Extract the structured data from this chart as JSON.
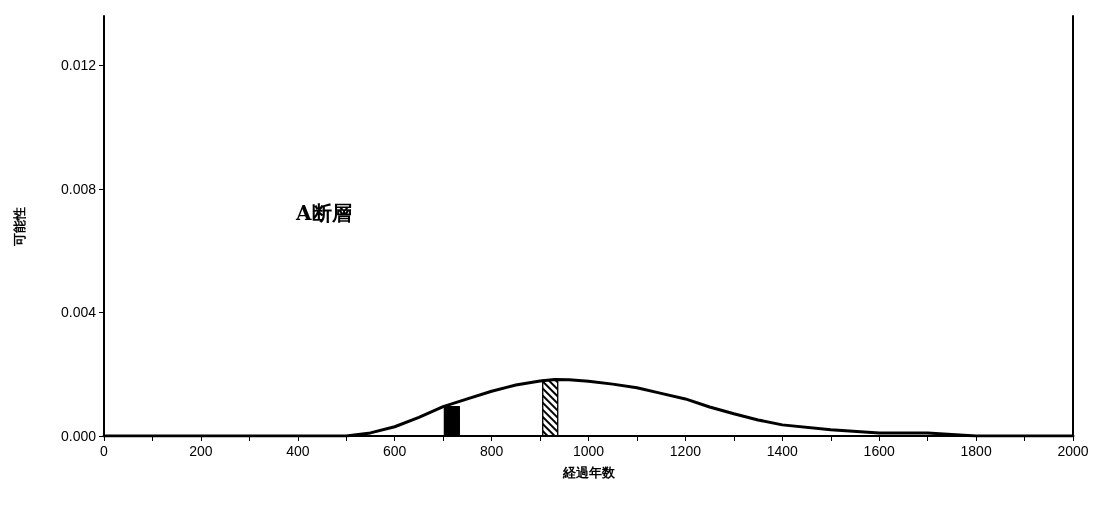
{
  "chart_data": {
    "type": "line",
    "xlabel": "経過年数",
    "ylabel": "可能性",
    "annotations": [
      "A断層"
    ],
    "xlim": [
      0,
      2000
    ],
    "xticks": [
      0,
      {
        "value": 100,
        "label": null
      },
      200,
      {
        "value": 300,
        "label": null
      },
      400,
      {
        "value": 500,
        "label": null
      },
      600,
      {
        "value": 700,
        "label": null
      },
      800,
      {
        "value": 900,
        "label": null
      },
      1000,
      {
        "value": 1100,
        "label": null
      },
      1200,
      {
        "value": 1300,
        "label": null
      },
      1400,
      {
        "value": 1500,
        "label": null
      },
      1600,
      {
        "value": 1700,
        "label": null
      },
      1800,
      {
        "value": 1900,
        "label": null
      },
      2000
    ],
    "ylim": [
      0,
      0.0136
    ],
    "yticks": [
      {
        "value": 0,
        "label": "0.000"
      },
      {
        "value": 0.004,
        "label": "0.004"
      },
      {
        "value": 0.008,
        "label": "0.008"
      },
      {
        "value": 0.012,
        "label": "0.012"
      }
    ],
    "grid": false,
    "marker": "none",
    "line_style": "solid",
    "series": [
      {
        "color": "#000000",
        "x": [
          0,
          200,
          400,
          450,
          500,
          550,
          600,
          650,
          700,
          750,
          800,
          850,
          900,
          930,
          960,
          1000,
          1050,
          1100,
          1150,
          1200,
          1250,
          1300,
          1350,
          1400,
          1500,
          1600,
          1700,
          1800,
          1900,
          2000
        ],
        "values": [
          0,
          0,
          0,
          0,
          0,
          0.0001,
          0.0003,
          0.0006,
          0.00095,
          0.0012,
          0.00145,
          0.00165,
          0.00178,
          0.00183,
          0.00182,
          0.00177,
          0.00168,
          0.00156,
          0.00138,
          0.0012,
          0.00094,
          0.00072,
          0.00052,
          0.00036,
          0.0002,
          0.0001,
          0.0001,
          0,
          0,
          0
        ]
      },
      {
        "type": "bar",
        "color": "#000000",
        "x": [
          718
        ],
        "values": [
          0.00097
        ]
      },
      {
        "type": "bar",
        "color": "#ffffff",
        "x": [
          921
        ],
        "values": [
          0.00183
        ]
      }
    ]
  }
}
